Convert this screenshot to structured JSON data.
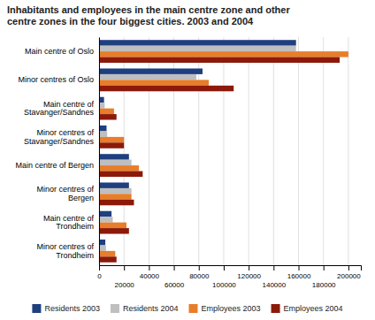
{
  "chart_data": {
    "type": "bar",
    "orientation": "horizontal",
    "title": "Inhabitants and employees in the main centre zone and other\ncentre zones in the four biggest cities. 2003 and 2004",
    "categories": [
      "Main centre of Oslo",
      "Minor centres of Oslo",
      "Main centre of\nStavanger/Sandnes",
      "Minor centres of\nStavanger/Sandnes",
      "Main centre of Bergen",
      "Minor centres of\nBergen",
      "Main centre of\nTrondheim",
      "Minor centres of\nTrondheim"
    ],
    "series": [
      {
        "name": "Residents 2003",
        "color": "#1f3f7f",
        "values": [
          158000,
          83000,
          4000,
          6000,
          24000,
          24000,
          10000,
          5000
        ]
      },
      {
        "name": "Residents 2004",
        "color": "#bfbfbf",
        "values": [
          158000,
          78000,
          4500,
          6500,
          26000,
          26000,
          11000,
          5500
        ]
      },
      {
        "name": "Employees 2003",
        "color": "#e87d2a",
        "values": [
          200000,
          88000,
          12000,
          20000,
          32000,
          26000,
          22000,
          13000
        ]
      },
      {
        "name": "Employees 2004",
        "color": "#8b1a0a",
        "values": [
          193000,
          108000,
          14000,
          20000,
          35000,
          28000,
          24000,
          14000
        ]
      }
    ],
    "xlim": [
      0,
      210000
    ],
    "xticks": [
      0,
      20000,
      40000,
      60000,
      80000,
      100000,
      120000,
      140000,
      160000,
      180000,
      200000
    ],
    "grid": true,
    "legend": "bottom"
  }
}
